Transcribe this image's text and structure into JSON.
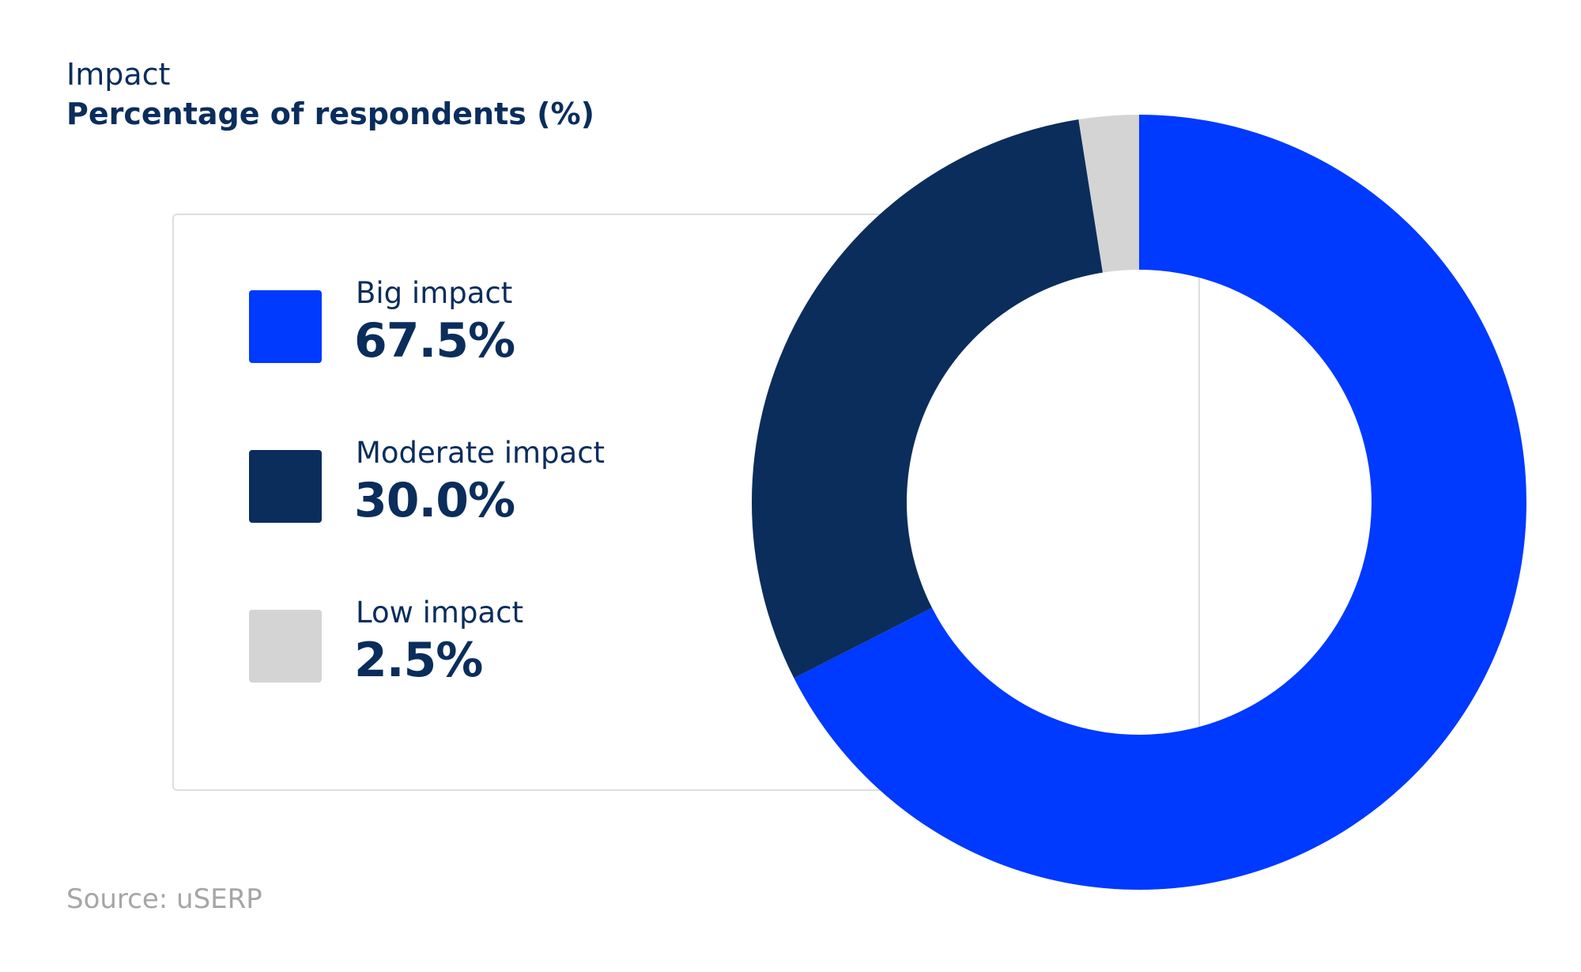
{
  "title": "Impact",
  "subtitle": "Percentage of respondents (%)",
  "source": "Source: uSERP",
  "chart_data": {
    "type": "pie",
    "variant": "donut",
    "title": "Impact",
    "subtitle": "Percentage of respondents (%)",
    "legend_placement": "left",
    "categories": [
      "Big impact",
      "Moderate impact",
      "Low impact"
    ],
    "values": [
      67.5,
      30.0,
      2.5
    ],
    "value_labels": [
      "67.5%",
      "30.0%",
      "2.5%"
    ],
    "colors": [
      "#0039ff",
      "#0a2d5c",
      "#d4d4d4"
    ],
    "unit": "%"
  },
  "legend": [
    {
      "label": "Big impact",
      "value": "67.5%",
      "color": "#0039ff"
    },
    {
      "label": "Moderate impact",
      "value": "30.0%",
      "color": "#0a2d5c"
    },
    {
      "label": "Low impact",
      "value": "2.5%",
      "color": "#d4d4d4"
    }
  ]
}
